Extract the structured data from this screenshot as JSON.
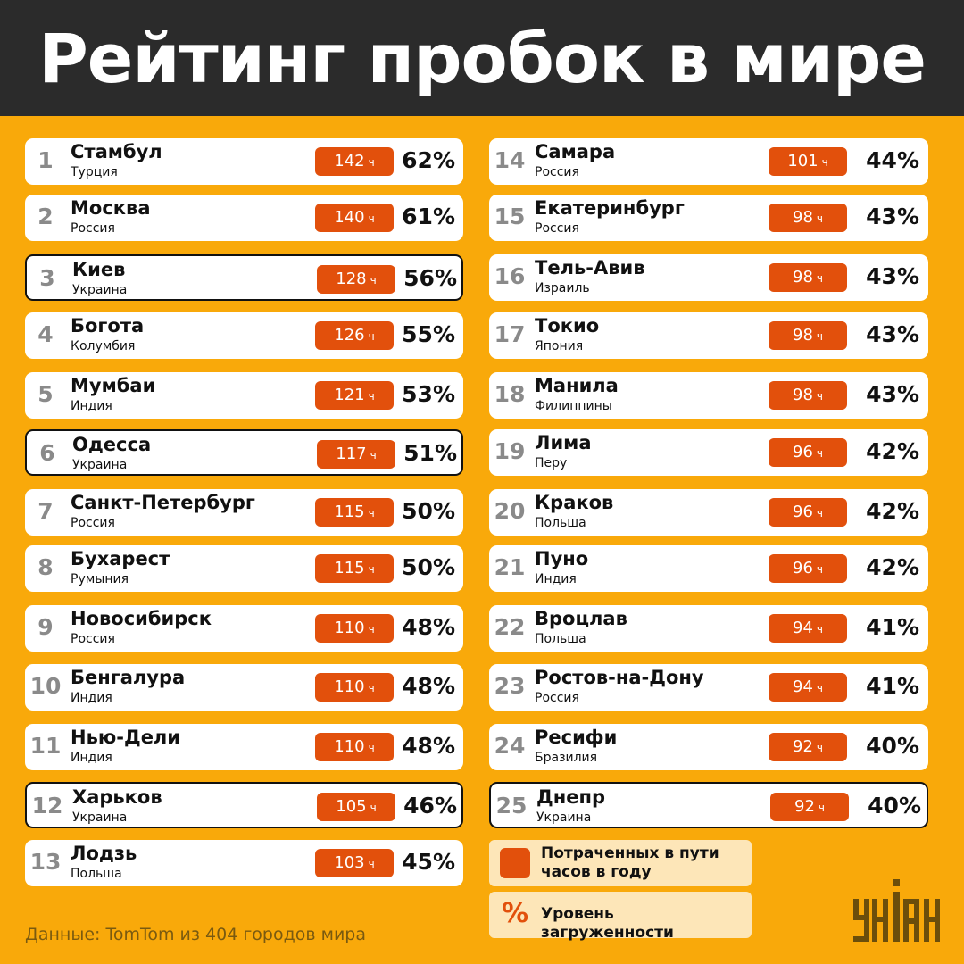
{
  "title": "Рейтинг пробок в мире",
  "units": {
    "hours": "ч"
  },
  "cities": [
    {
      "rank": "1",
      "city": "Стамбул",
      "country": "Турция",
      "hours": "142",
      "pct": "62%",
      "highlight": false
    },
    {
      "rank": "2",
      "city": "Москва",
      "country": "Россия",
      "hours": "140",
      "pct": "61%",
      "highlight": false
    },
    {
      "rank": "3",
      "city": "Киев",
      "country": "Украина",
      "hours": "128",
      "pct": "56%",
      "highlight": true
    },
    {
      "rank": "4",
      "city": "Богота",
      "country": "Колумбия",
      "hours": "126",
      "pct": "55%",
      "highlight": false
    },
    {
      "rank": "5",
      "city": "Мумбаи",
      "country": "Индия",
      "hours": "121",
      "pct": "53%",
      "highlight": false
    },
    {
      "rank": "6",
      "city": "Одесса",
      "country": "Украина",
      "hours": "117",
      "pct": "51%",
      "highlight": true
    },
    {
      "rank": "7",
      "city": "Санкт-Петербург",
      "country": "Россия",
      "hours": "115",
      "pct": "50%",
      "highlight": false
    },
    {
      "rank": "8",
      "city": "Бухарест",
      "country": "Румыния",
      "hours": "115",
      "pct": "50%",
      "highlight": false
    },
    {
      "rank": "9",
      "city": "Новосибирск",
      "country": "Россия",
      "hours": "110",
      "pct": "48%",
      "highlight": false
    },
    {
      "rank": "10",
      "city": "Бенгалура",
      "country": "Индия",
      "hours": "110",
      "pct": "48%",
      "highlight": false
    },
    {
      "rank": "11",
      "city": "Нью-Дели",
      "country": "Индия",
      "hours": "110",
      "pct": "48%",
      "highlight": false
    },
    {
      "rank": "12",
      "city": "Харьков",
      "country": "Украина",
      "hours": "105",
      "pct": "46%",
      "highlight": true
    },
    {
      "rank": "13",
      "city": "Лодзь",
      "country": "Польша",
      "hours": "103",
      "pct": "45%",
      "highlight": false
    },
    {
      "rank": "14",
      "city": "Самара",
      "country": "Россия",
      "hours": "101",
      "pct": "44%",
      "highlight": false
    },
    {
      "rank": "15",
      "city": "Екатеринбург",
      "country": "Россия",
      "hours": "98",
      "pct": "43%",
      "highlight": false
    },
    {
      "rank": "16",
      "city": "Тель-Авив",
      "country": "Израиль",
      "hours": "98",
      "pct": "43%",
      "highlight": false
    },
    {
      "rank": "17",
      "city": "Токио",
      "country": "Япония",
      "hours": "98",
      "pct": "43%",
      "highlight": false
    },
    {
      "rank": "18",
      "city": "Манила",
      "country": "Филиппины",
      "hours": "98",
      "pct": "43%",
      "highlight": false
    },
    {
      "rank": "19",
      "city": "Лима",
      "country": "Перу",
      "hours": "96",
      "pct": "42%",
      "highlight": false
    },
    {
      "rank": "20",
      "city": "Краков",
      "country": "Польша",
      "hours": "96",
      "pct": "42%",
      "highlight": false
    },
    {
      "rank": "21",
      "city": "Пуно",
      "country": "Индия",
      "hours": "96",
      "pct": "42%",
      "highlight": false
    },
    {
      "rank": "22",
      "city": "Вроцлав",
      "country": "Польша",
      "hours": "94",
      "pct": "41%",
      "highlight": false
    },
    {
      "rank": "23",
      "city": "Ростов-на-Дону",
      "country": "Россия",
      "hours": "94",
      "pct": "41%",
      "highlight": false
    },
    {
      "rank": "24",
      "city": "Ресифи",
      "country": "Бразилия",
      "hours": "92",
      "pct": "40%",
      "highlight": false
    },
    {
      "rank": "25",
      "city": "Днепр",
      "country": "Украина",
      "hours": "92",
      "pct": "40%",
      "highlight": true
    }
  ],
  "legend": {
    "hours_line1": "Потраченных в пути",
    "hours_line2": "часов в году",
    "percent_symbol": "%",
    "percent_label": "Уровень загруженности"
  },
  "source": "Данные: TomTom из 404 городов мира",
  "logo_text": "УНІАН",
  "colors": {
    "background": "#f9a90a",
    "header": "#2b2b2b",
    "accent": "#e2500c",
    "legend_bg": "#fde6b8",
    "logo": "#6b4e0b"
  }
}
